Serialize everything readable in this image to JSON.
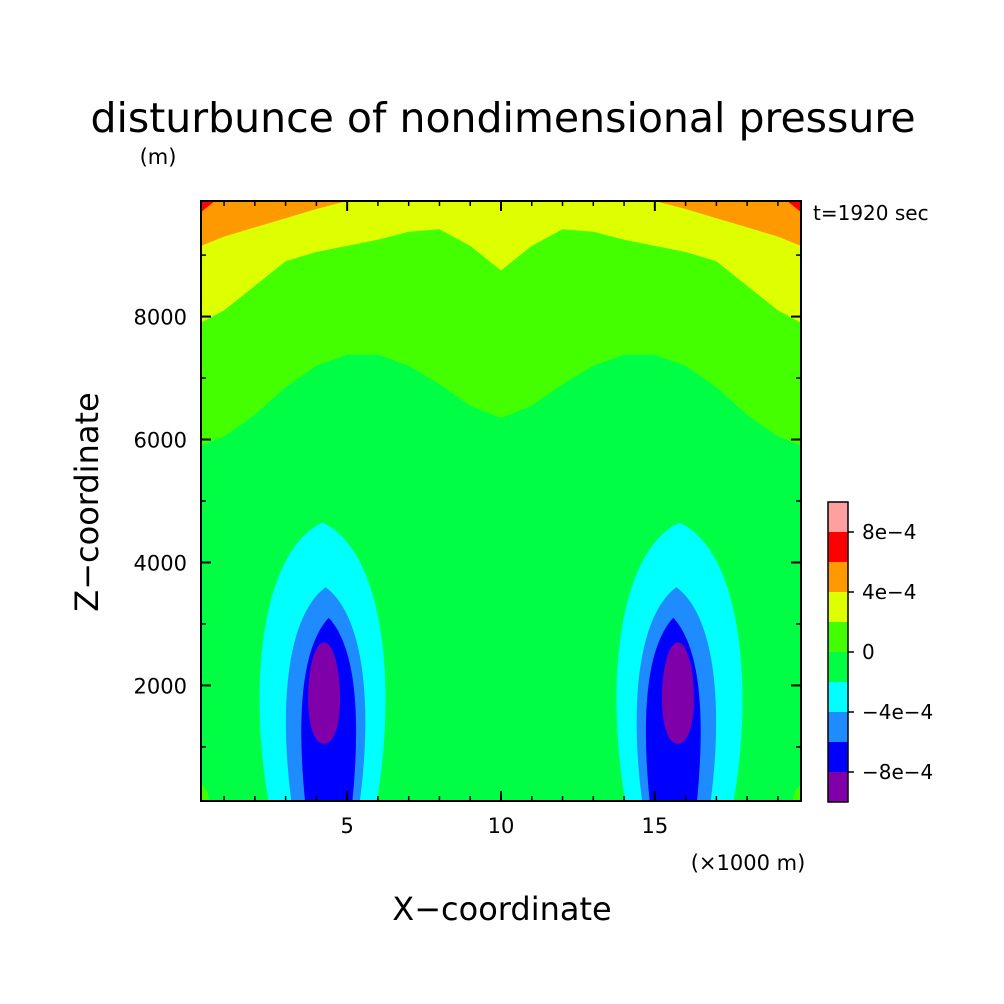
{
  "chart_data": {
    "type": "heatmap",
    "title": "disturbunce of nondimensional pressure",
    "annotation": "t=1920 sec",
    "xlabel": "X−coordinate",
    "ylabel": "Z−coordinate",
    "xunit": "(×1000 m)",
    "yunit": "(m)",
    "xlim": [
      0.25,
      19.75
    ],
    "ylim": [
      120,
      9880
    ],
    "xticks": [
      {
        "value": 5,
        "label": "5"
      },
      {
        "value": 10,
        "label": "10"
      },
      {
        "value": 15,
        "label": "15"
      }
    ],
    "yticks": [
      {
        "value": 2000,
        "label": "2000"
      },
      {
        "value": 4000,
        "label": "4000"
      },
      {
        "value": 6000,
        "label": "6000"
      },
      {
        "value": 8000,
        "label": "8000"
      }
    ],
    "colorbar": {
      "levels": [
        -0.001,
        -0.0008,
        -0.0006,
        -0.0004,
        -0.0002,
        0,
        0.0002,
        0.0004,
        0.0006,
        0.0008,
        0.001
      ],
      "colors": [
        "#7f00a8",
        "#0000ff",
        "#1e8cff",
        "#00ffff",
        "#00ff44",
        "#44ff00",
        "#ddff00",
        "#ff9900",
        "#ff0000",
        "#ffa0a0"
      ],
      "labels": [
        {
          "value": 0.0008,
          "label": "8e−4"
        },
        {
          "value": 0.0004,
          "label": "4e−4"
        },
        {
          "value": 0,
          "label": "0"
        },
        {
          "value": -0.0004,
          "label": "−4e−4"
        },
        {
          "value": -0.0008,
          "label": "−8e−4"
        }
      ]
    },
    "field_description": "symmetric about x=10; negative cores near x=4.2 and x=15.8 at z~1800 m; positive values near the top boundary",
    "bands": [
      {
        "value": 0.0001,
        "color": "#44ff00",
        "upper": [
          [
            0.25,
            5900
          ],
          [
            1,
            6050
          ],
          [
            2,
            6400
          ],
          [
            3,
            6850
          ],
          [
            4,
            7200
          ],
          [
            5,
            7380
          ],
          [
            6,
            7380
          ],
          [
            7,
            7200
          ],
          [
            8,
            6900
          ],
          [
            9,
            6550
          ],
          [
            10,
            6350
          ],
          [
            11,
            6550
          ],
          [
            12,
            6900
          ],
          [
            13,
            7200
          ],
          [
            14,
            7380
          ],
          [
            15,
            7380
          ],
          [
            16,
            7200
          ],
          [
            17,
            6850
          ],
          [
            18,
            6400
          ],
          [
            19,
            6050
          ],
          [
            19.75,
            5900
          ]
        ]
      },
      {
        "value": 0.0003,
        "color": "#ddff00",
        "upper": [
          [
            0.25,
            7900
          ],
          [
            1,
            8100
          ],
          [
            2,
            8500
          ],
          [
            3,
            8900
          ],
          [
            4,
            9050
          ],
          [
            5,
            9150
          ],
          [
            6,
            9250
          ],
          [
            7,
            9380
          ],
          [
            8,
            9420
          ],
          [
            9,
            9150
          ],
          [
            10,
            8750
          ],
          [
            11,
            9150
          ],
          [
            12,
            9420
          ],
          [
            13,
            9380
          ],
          [
            14,
            9250
          ],
          [
            15,
            9150
          ],
          [
            16,
            9050
          ],
          [
            17,
            8900
          ],
          [
            18,
            8500
          ],
          [
            19,
            8100
          ],
          [
            19.75,
            7900
          ]
        ]
      },
      {
        "value": 0.0005,
        "color": "#ff9900",
        "upper": [
          [
            0.25,
            9150
          ],
          [
            1,
            9300
          ],
          [
            2,
            9450
          ],
          [
            3,
            9600
          ],
          [
            4,
            9750
          ],
          [
            5,
            9880
          ],
          [
            15,
            9880
          ],
          [
            16,
            9750
          ],
          [
            17,
            9600
          ],
          [
            18,
            9450
          ],
          [
            19,
            9300
          ],
          [
            19.75,
            9150
          ]
        ]
      },
      {
        "value": 0.0007,
        "color": "#ff0000",
        "upper": [
          [
            0.25,
            9700
          ],
          [
            0.7,
            9880
          ],
          [
            0.8,
            9880
          ],
          [
            0.25,
            9880
          ]
        ]
      }
    ],
    "lobes": [
      {
        "value": -0.0001,
        "color": "#00ff44",
        "cx": [
          4.4,
          15.6
        ],
        "cy": 2500,
        "rx": 2.9,
        "bottom": 120,
        "top": 5600
      },
      {
        "value": -0.0003,
        "color": "#00ffff",
        "cx": [
          4.2,
          15.8
        ],
        "cy": 2200,
        "rx": 2.3,
        "bottom": 120,
        "top": 4650
      },
      {
        "value": -0.0005,
        "color": "#1e8cff",
        "cx": [
          4.3,
          15.7
        ],
        "cy": 1900,
        "rx": 1.45,
        "bottom": 120,
        "top": 3600
      },
      {
        "value": -0.0007,
        "color": "#0000ff",
        "cx": [
          4.4,
          15.6
        ],
        "cy": 1800,
        "rx": 1.0,
        "bottom": 120,
        "top": 3100
      },
      {
        "value": -0.0009,
        "color": "#7f00a8",
        "cx": [
          4.25,
          15.75
        ],
        "cy": 1900,
        "rx": 0.6,
        "bottom": 1050,
        "top": 2700
      }
    ],
    "blobs": [
      {
        "value": -0.0001,
        "color": "#00ff44",
        "x": [
          1.0,
          19.0
        ],
        "y": [
          1300,
          1300
        ],
        "rx": 0.55,
        "ry": 200
      },
      {
        "value": -0.0001,
        "color": "#00ff44",
        "x": [
          1.6,
          18.4
        ],
        "y": [
          450,
          450
        ],
        "rx": 0.45,
        "ry": 300
      },
      {
        "value": 0.0001,
        "color": "#44ff00",
        "x": [
          0.25,
          19.75
        ],
        "y": [
          120,
          120
        ],
        "rx": 0.25,
        "ry": 250
      }
    ]
  }
}
